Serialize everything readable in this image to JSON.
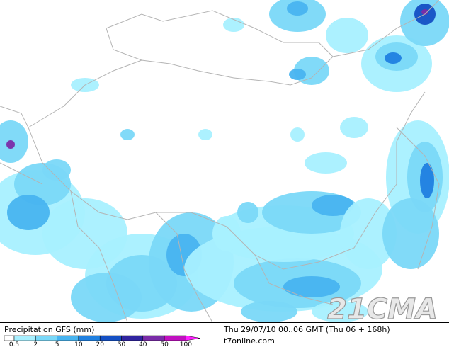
{
  "map": {
    "watermark": "21CMA"
  },
  "footer": {
    "title": "Precipitation GFS (mm)",
    "valid_time": "Thu 29/07/10 00..06 GMT (Thu 06 + 168h)",
    "source": "t7online.com"
  },
  "legend": {
    "ticks": [
      0.5,
      2,
      5,
      10,
      20,
      30,
      40,
      50,
      100
    ],
    "colors": [
      "#ffffff",
      "#a8f0ff",
      "#7ad8f8",
      "#48b4f0",
      "#2080e0",
      "#1450c4",
      "#3024a0",
      "#7a2ca8",
      "#c010c0",
      "#ff20ff"
    ]
  }
}
